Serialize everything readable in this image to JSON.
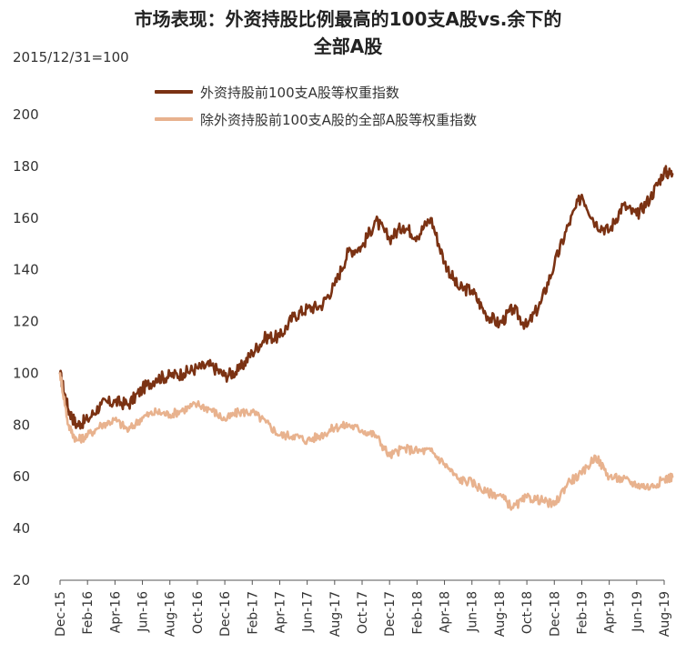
{
  "title_line1": "市场表现：外资持股比例最高的100支A股vs.余下的",
  "title_line2": "全部A股",
  "subtitle": "2015/12/31=100",
  "chart_data": {
    "type": "line",
    "title": "市场表现：外资持股比例最高的100支A股vs.余下的全部A股",
    "xlabel": "",
    "ylabel": "",
    "ylim": [
      20,
      200
    ],
    "yticks": [
      20,
      40,
      60,
      80,
      100,
      120,
      140,
      160,
      180,
      200
    ],
    "categories": [
      "Dec-15",
      "Feb-16",
      "Apr-16",
      "Jun-16",
      "Aug-16",
      "Oct-16",
      "Dec-16",
      "Feb-17",
      "Apr-17",
      "Jun-17",
      "Aug-17",
      "Oct-17",
      "Dec-17",
      "Feb-18",
      "Apr-18",
      "Jun-18",
      "Aug-18",
      "Oct-18",
      "Dec-18",
      "Feb-19",
      "Apr-19",
      "Jun-19",
      "Aug-19"
    ],
    "grid": false,
    "legend_position": "top-left",
    "series": [
      {
        "name": "外资持股前100支A股等权重指数",
        "color": "#7b3213",
        "x": [
          0,
          0.3,
          0.6,
          1,
          1.5,
          2,
          2.5,
          3,
          3.5,
          4,
          4.5,
          5,
          5.5,
          6,
          6.5,
          7,
          7.5,
          8,
          8.5,
          9,
          9.5,
          10,
          10.5,
          11,
          11.5,
          12,
          12.5,
          13,
          13.5,
          14,
          14.5,
          15,
          15.5,
          16,
          16.5,
          17,
          17.5,
          18,
          18.5,
          19,
          19.5,
          20,
          20.5,
          21,
          21.5,
          22,
          22.3
        ],
        "values": [
          100,
          86,
          80,
          82,
          88,
          89,
          88,
          94,
          98,
          99,
          100,
          102,
          103,
          99,
          101,
          108,
          114,
          114,
          122,
          125,
          126,
          134,
          147,
          149,
          159,
          152,
          157,
          153,
          160,
          143,
          133,
          132,
          123,
          119,
          125,
          118,
          127,
          142,
          157,
          169,
          158,
          155,
          165,
          161,
          168,
          178,
          177
        ]
      },
      {
        "name": "除外资持股前100支A股的全部A股等权重指数",
        "color": "#e8b28e",
        "x": [
          0,
          0.3,
          0.6,
          1,
          1.5,
          2,
          2.5,
          3,
          3.5,
          4,
          4.5,
          5,
          5.5,
          6,
          6.5,
          7,
          7.5,
          8,
          8.5,
          9,
          9.5,
          10,
          10.5,
          11,
          11.5,
          12,
          12.5,
          13,
          13.5,
          14,
          14.5,
          15,
          15.5,
          16,
          16.5,
          17,
          17.5,
          18,
          18.5,
          19,
          19.5,
          20,
          20.5,
          21,
          21.5,
          22,
          22.3
        ],
        "values": [
          100,
          80,
          74,
          76,
          80,
          82,
          78,
          83,
          85,
          84,
          86,
          88,
          86,
          82,
          85,
          85,
          81,
          76,
          76,
          74,
          76,
          79,
          80,
          78,
          76,
          68,
          71,
          70,
          70,
          65,
          59,
          58,
          54,
          53,
          48,
          52,
          51,
          49,
          58,
          61,
          68,
          60,
          59,
          57,
          56,
          59,
          60
        ]
      }
    ]
  }
}
